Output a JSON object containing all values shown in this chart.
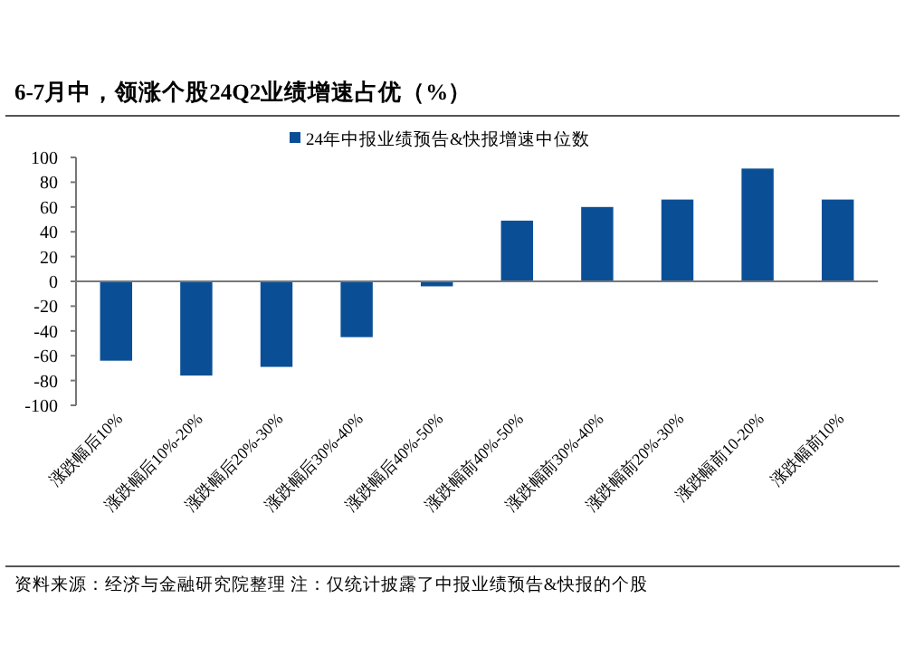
{
  "chart_data": {
    "type": "bar",
    "title": "6-7月中，领涨个股24Q2业绩增速占优（%）",
    "categories": [
      "涨跌幅后10%",
      "涨跌幅后10%-20%",
      "涨跌幅后20%-30%",
      "涨跌幅后30%-40%",
      "涨跌幅后40%-50%",
      "涨跌幅前40%-50%",
      "涨跌幅前30%-40%",
      "涨跌幅前20%-30%",
      "涨跌幅前10-20%",
      "涨跌幅前10%"
    ],
    "series": [
      {
        "name": "24年中报业绩预告&快报增速中位数",
        "color": "#0a4f96",
        "values": [
          -64,
          -76,
          -69,
          -45,
          -4,
          49,
          60,
          66,
          91,
          66
        ]
      }
    ],
    "ylim": [
      -100,
      100
    ],
    "yticks": [
      -100,
      -80,
      -60,
      -40,
      -20,
      0,
      20,
      40,
      60,
      80,
      100
    ],
    "legend": "top",
    "annotations": [
      "资料来源：经济与金融研究院整理 注：仅统计披露了中报业绩预告&快报的个股"
    ]
  }
}
